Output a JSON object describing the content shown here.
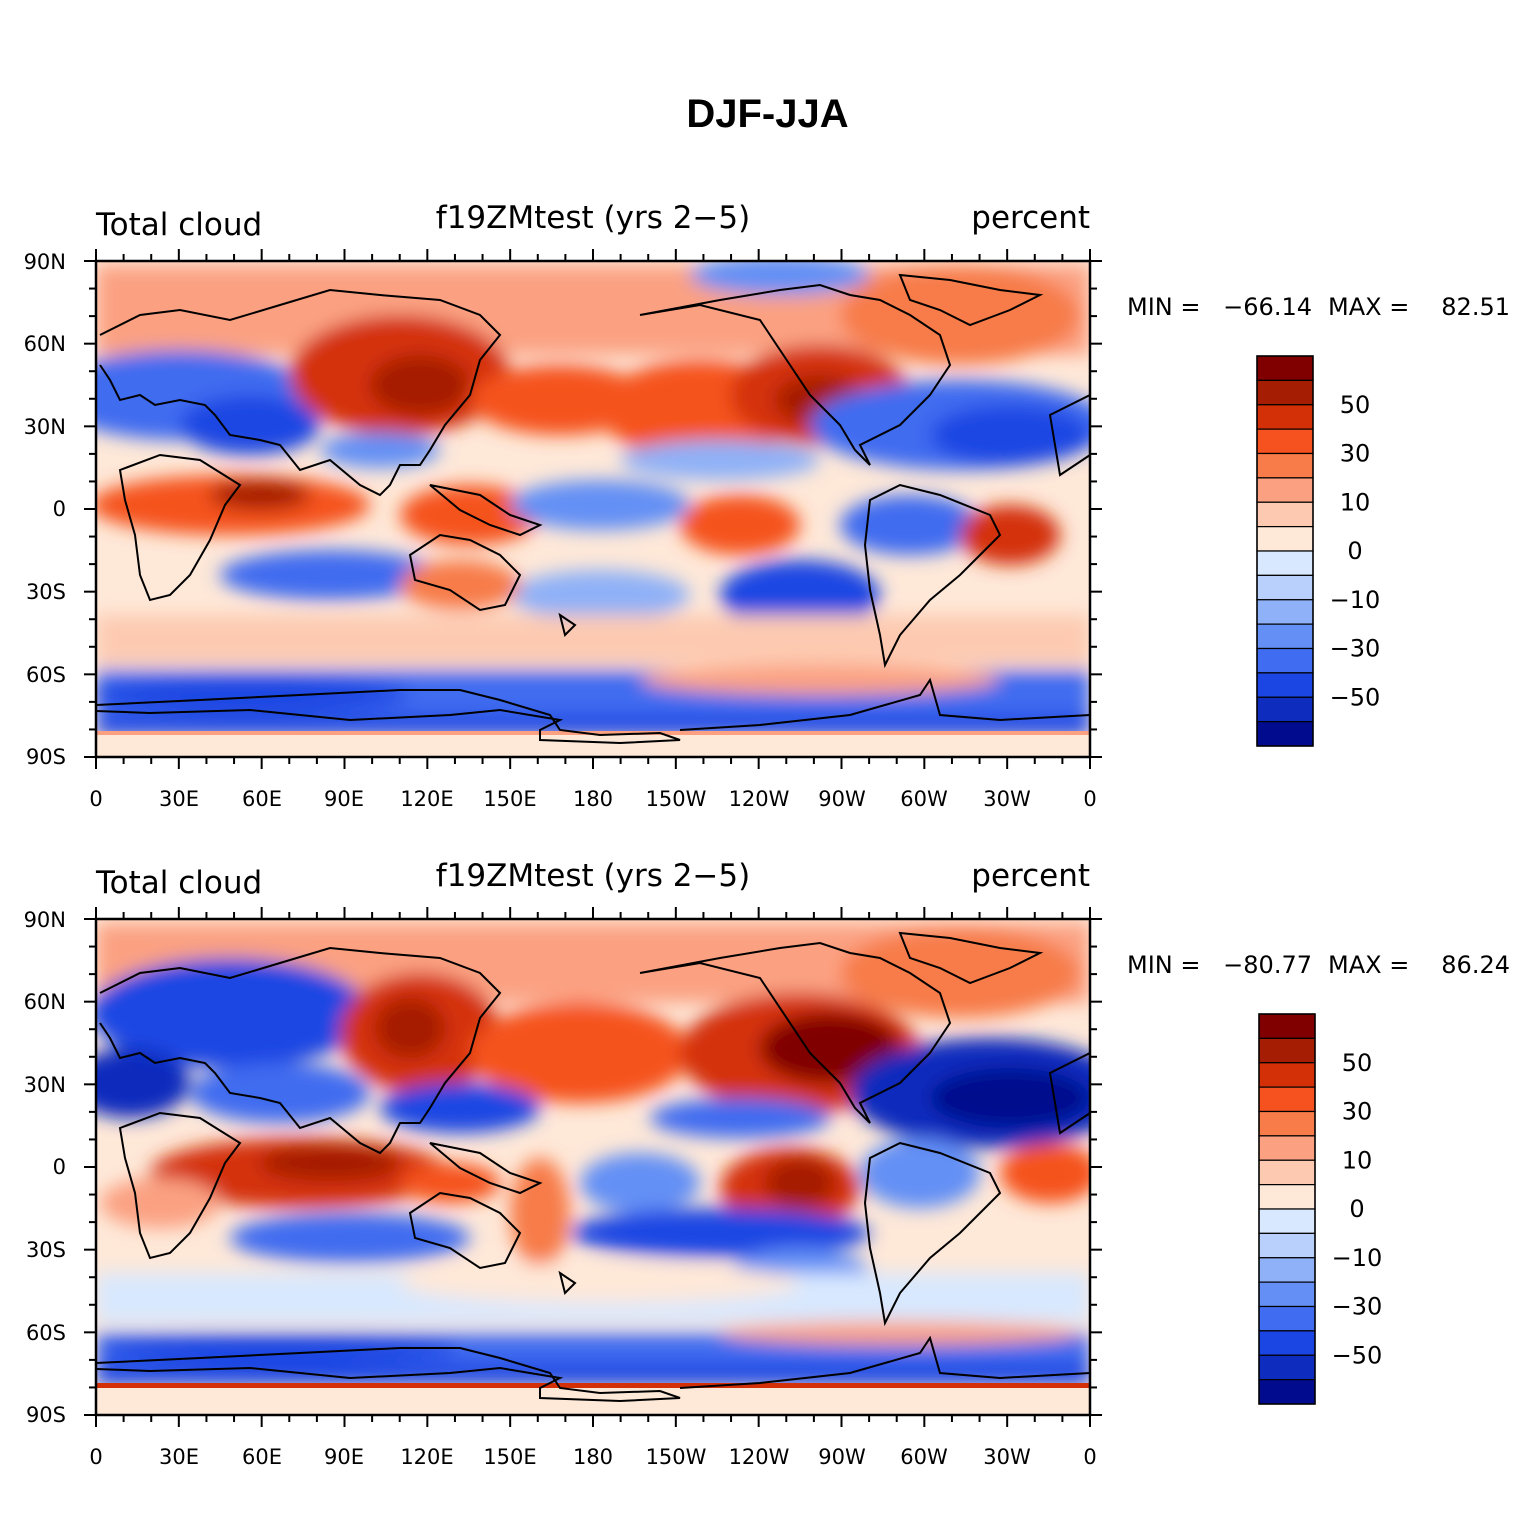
{
  "title": "DJF-JJA",
  "x_ticks": [
    "0",
    "30E",
    "60E",
    "90E",
    "120E",
    "150E",
    "180",
    "150W",
    "120W",
    "90W",
    "60W",
    "30W",
    "0"
  ],
  "y_ticks": [
    "90N",
    "60N",
    "30N",
    "0",
    "30S",
    "60S",
    "90S"
  ],
  "colorbar": {
    "colors": [
      "#800000",
      "#a51e04",
      "#d43008",
      "#f5521f",
      "#f77c4a",
      "#fba182",
      "#fdcab1",
      "#fee8d8",
      "#d8e8fe",
      "#b8d0fb",
      "#8fb1f7",
      "#6490f5",
      "#3f6cf0",
      "#1c46e3",
      "#0e2cbd",
      "#000c8d"
    ],
    "labels": [
      "50",
      "30",
      "10",
      "0",
      "−10",
      "−30",
      "−50"
    ]
  },
  "panels": [
    {
      "left_label": "Total cloud",
      "center_label": "f19ZMtest (yrs 2−5)",
      "right_label": "percent",
      "min_label": "MIN =",
      "min_value": "−66.14",
      "max_label": "MAX =",
      "max_value": "82.51"
    },
    {
      "left_label": "Total cloud",
      "center_label": "f19ZMtest (yrs 2−5)",
      "right_label": "percent",
      "min_label": "MIN =",
      "min_value": "−80.77",
      "max_label": "MAX =",
      "max_value": "86.24"
    }
  ]
}
